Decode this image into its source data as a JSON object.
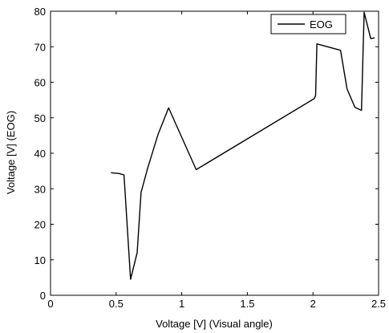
{
  "chart_data": {
    "type": "line",
    "xlabel": "Voltage [V] (Visual angle)",
    "ylabel": "Voltage [V] (EOG)",
    "xlim": [
      0,
      2.5
    ],
    "ylim": [
      0,
      80
    ],
    "xticks": [
      0,
      0.5,
      1,
      1.5,
      2,
      2.5
    ],
    "yticks": [
      0,
      10,
      20,
      30,
      40,
      50,
      60,
      70,
      80
    ],
    "xtick_labels": [
      "0",
      "0.5",
      "1",
      "1.5",
      "2",
      "2.5"
    ],
    "ytick_labels": [
      "0",
      "10",
      "20",
      "30",
      "40",
      "50",
      "60",
      "70",
      "80"
    ],
    "grid": false,
    "legend_position": "top-right",
    "series": [
      {
        "name": "EOG",
        "color": "#000000",
        "x": [
          0.46,
          0.52,
          0.56,
          0.61,
          0.66,
          0.69,
          0.74,
          0.82,
          0.9,
          1.11,
          2.01,
          2.02,
          2.03,
          2.21,
          2.26,
          2.32,
          2.37,
          2.39,
          2.44,
          2.47
        ],
        "y": [
          34.5,
          34.3,
          33.9,
          4.5,
          12.0,
          29.0,
          35.8,
          45.4,
          52.8,
          35.4,
          55.4,
          56.3,
          70.8,
          69.0,
          58.1,
          52.9,
          52.1,
          79.7,
          72.3,
          72.5
        ]
      }
    ]
  }
}
